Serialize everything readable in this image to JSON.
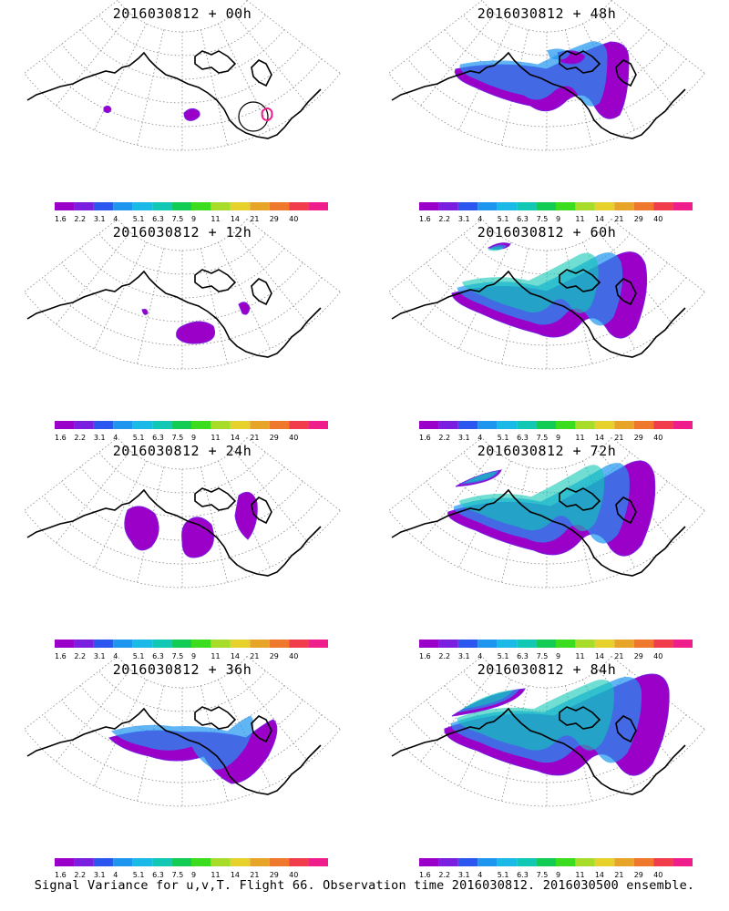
{
  "panels": [
    {
      "title": "2016030812 + 00h",
      "lead_hours": 0
    },
    {
      "title": "2016030812 + 48h",
      "lead_hours": 48
    },
    {
      "title": "2016030812 + 12h",
      "lead_hours": 12
    },
    {
      "title": "2016030812 + 60h",
      "lead_hours": 60
    },
    {
      "title": "2016030812 + 24h",
      "lead_hours": 24
    },
    {
      "title": "2016030812 + 72h",
      "lead_hours": 72
    },
    {
      "title": "2016030812 + 36h",
      "lead_hours": 36
    },
    {
      "title": "2016030812 + 84h",
      "lead_hours": 84
    }
  ],
  "colorbar": {
    "levels": [
      "1.6",
      "2.2",
      "3.1",
      "4",
      "5.1",
      "6.3",
      "7.5",
      "9",
      "11",
      "14",
      "21",
      "29",
      "40"
    ],
    "colors": [
      "#9b00c8",
      "#7a1fe0",
      "#2d55f0",
      "#1e96f0",
      "#1ab9e6",
      "#10c8b4",
      "#12cc55",
      "#3cdc1e",
      "#a8dc2a",
      "#e6d22a",
      "#e6a528",
      "#f0782d",
      "#f03c4b",
      "#f01e8c"
    ]
  },
  "footer": "Signal Variance for u,v,T. Flight 66. Observation time 2016030812. 2016030500 ensemble."
}
